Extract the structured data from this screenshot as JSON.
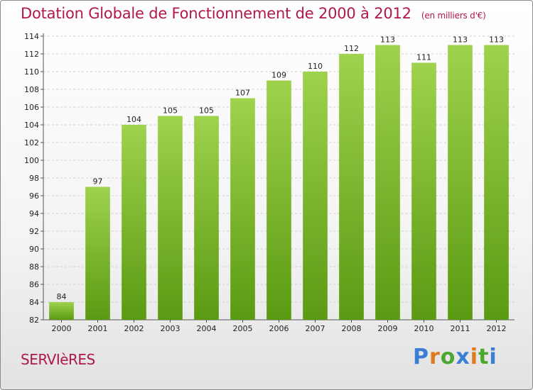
{
  "header": {
    "title": "Dotation Globale de Fonctionnement de 2000 à 2012",
    "unit": "(en milliers d'€)"
  },
  "commune": "SERVIèRES",
  "logo": {
    "text": "Proxiti",
    "letter_colors": [
      "#3a7fd5",
      "#e07a1f",
      "#4aa82e",
      "#3a7fd5",
      "#e07a1f",
      "#4aa82e",
      "#3a7fd5"
    ]
  },
  "colors": {
    "bar_top": "#9fd24d",
    "bar_bottom": "#5a9a12",
    "accent": "#b0174f"
  },
  "chart_data": {
    "type": "bar",
    "title": "Dotation Globale de Fonctionnement de 2000 à 2012",
    "categories": [
      "2000",
      "2001",
      "2002",
      "2003",
      "2004",
      "2005",
      "2006",
      "2007",
      "2008",
      "2009",
      "2010",
      "2011",
      "2012"
    ],
    "values": [
      84,
      97,
      104,
      105,
      105,
      107,
      109,
      110,
      112,
      113,
      111,
      113,
      113
    ],
    "ylim": [
      82,
      114
    ],
    "yticks": [
      82,
      84,
      86,
      88,
      90,
      92,
      94,
      96,
      98,
      100,
      102,
      104,
      106,
      108,
      110,
      112,
      114
    ],
    "grid": true
  }
}
